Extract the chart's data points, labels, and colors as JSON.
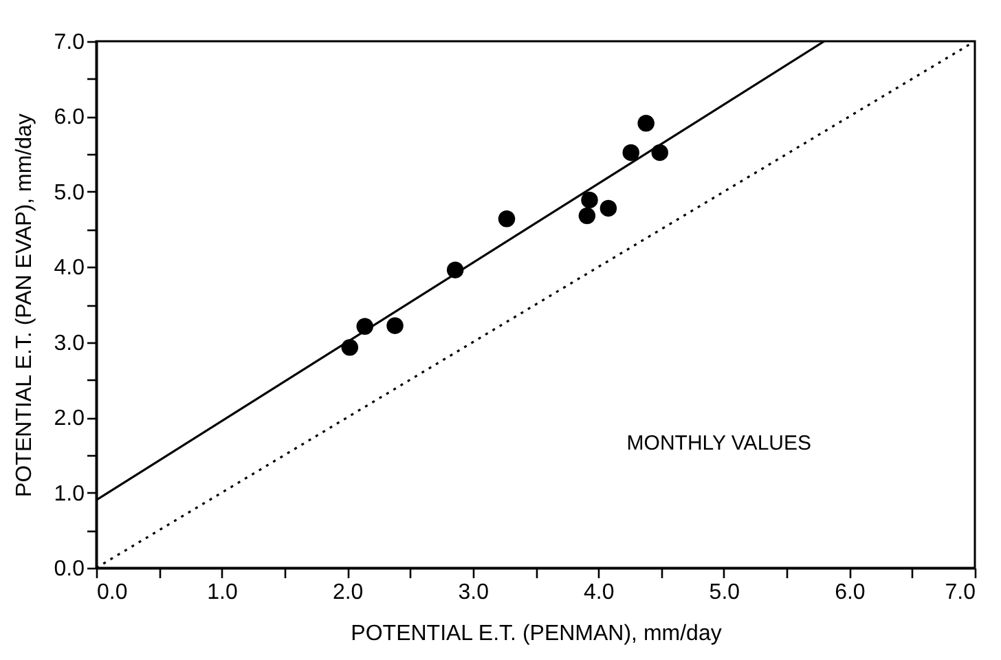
{
  "chart_data": {
    "type": "scatter",
    "xlabel": "POTENTIAL E.T. (PENMAN), mm/day",
    "ylabel": "POTENTIAL E.T. (PAN EVAP), mm/day",
    "annotations": [
      "MONTHLY VALUES"
    ],
    "xlim": [
      0,
      7
    ],
    "ylim": [
      0,
      7
    ],
    "xticks": [
      {
        "value": 0,
        "label": "0.0"
      },
      {
        "value": 0.5,
        "label": null
      },
      {
        "value": 1,
        "label": "1.0"
      },
      {
        "value": 1.5,
        "label": null
      },
      {
        "value": 2,
        "label": "2.0"
      },
      {
        "value": 2.5,
        "label": null
      },
      {
        "value": 3,
        "label": "3.0"
      },
      {
        "value": 3.5,
        "label": null
      },
      {
        "value": 4,
        "label": "4.0"
      },
      {
        "value": 4.5,
        "label": null
      },
      {
        "value": 5,
        "label": "5.0"
      },
      {
        "value": 5.5,
        "label": null
      },
      {
        "value": 6,
        "label": "6.0"
      },
      {
        "value": 6.5,
        "label": null
      },
      {
        "value": 7,
        "label": "7.0"
      }
    ],
    "yticks": [
      {
        "value": 0,
        "label": "0.0"
      },
      {
        "value": 0.5,
        "label": null
      },
      {
        "value": 1,
        "label": "1.0"
      },
      {
        "value": 1.5,
        "label": null
      },
      {
        "value": 2,
        "label": "2.0"
      },
      {
        "value": 2.5,
        "label": null
      },
      {
        "value": 3,
        "label": "3.0"
      },
      {
        "value": 3.5,
        "label": null
      },
      {
        "value": 4,
        "label": "4.0"
      },
      {
        "value": 4.5,
        "label": null
      },
      {
        "value": 5,
        "label": "5.0"
      },
      {
        "value": 5.5,
        "label": null
      },
      {
        "value": 6,
        "label": "6.0"
      },
      {
        "value": 6.5,
        "label": null
      },
      {
        "value": 7,
        "label": "7.0"
      }
    ],
    "grid": false,
    "marker": "circle",
    "series": [
      {
        "color": "#000000",
        "x": [
          2.02,
          2.14,
          2.38,
          2.86,
          3.27,
          3.91,
          3.93,
          4.08,
          4.26,
          4.38,
          4.49
        ],
        "values": [
          2.93,
          3.21,
          3.22,
          3.96,
          4.64,
          4.68,
          4.89,
          4.78,
          5.52,
          5.91,
          5.52
        ]
      },
      {
        "type": "line",
        "color": "#000000",
        "line_style": "solid",
        "marker": "none",
        "x": [
          0,
          5.8
        ],
        "values": [
          0.9,
          7.0
        ]
      },
      {
        "type": "line",
        "color": "#000000",
        "line_style": "dotted",
        "marker": "none",
        "x": [
          0,
          7
        ],
        "values": [
          0,
          7
        ]
      }
    ]
  }
}
